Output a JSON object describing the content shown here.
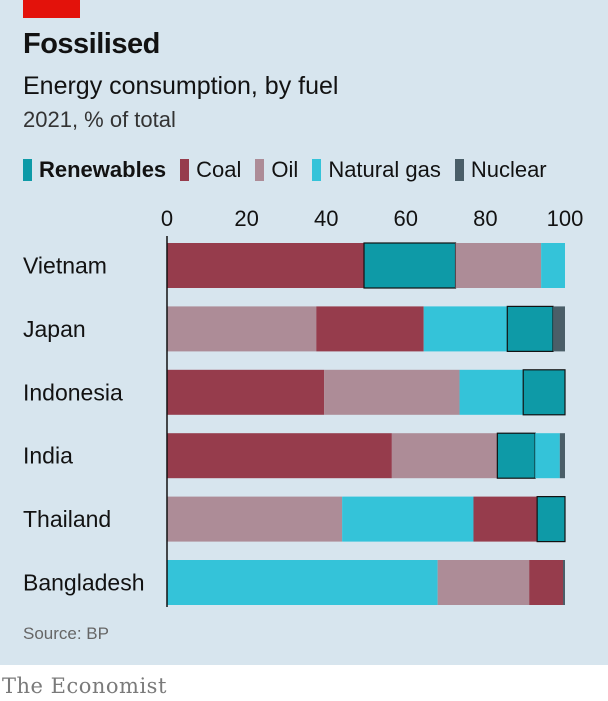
{
  "header": {
    "title": "Fossilised",
    "subtitle": "Energy consumption, by fuel",
    "units": "2021, % of total"
  },
  "source": "Source: BP",
  "brand": "The Economist",
  "colors": {
    "Renewables": "#0e9aa7",
    "Coal": "#963c4c",
    "Oil": "#ad8c97",
    "Natural gas": "#34c3d9",
    "Nuclear": "#4a5e68"
  },
  "chart_data": {
    "type": "bar",
    "orientation": "horizontal",
    "stacked": true,
    "categories": [
      "Vietnam",
      "Japan",
      "Indonesia",
      "India",
      "Thailand",
      "Bangladesh"
    ],
    "legend_order": [
      "Renewables",
      "Coal",
      "Oil",
      "Natural gas",
      "Nuclear"
    ],
    "xlim": [
      0,
      100
    ],
    "xticks": [
      0,
      20,
      40,
      60,
      80,
      100
    ],
    "grid": false,
    "legend_position": "top-left",
    "rows": [
      {
        "category": "Vietnam",
        "segments": [
          {
            "fuel": "Coal",
            "value": 49.5
          },
          {
            "fuel": "Renewables",
            "value": 23
          },
          {
            "fuel": "Oil",
            "value": 21.5
          },
          {
            "fuel": "Natural gas",
            "value": 6
          }
        ]
      },
      {
        "category": "Japan",
        "segments": [
          {
            "fuel": "Oil",
            "value": 37.5
          },
          {
            "fuel": "Coal",
            "value": 27
          },
          {
            "fuel": "Natural gas",
            "value": 21
          },
          {
            "fuel": "Renewables",
            "value": 11.5
          },
          {
            "fuel": "Nuclear",
            "value": 3
          }
        ]
      },
      {
        "category": "Indonesia",
        "segments": [
          {
            "fuel": "Coal",
            "value": 39.5
          },
          {
            "fuel": "Oil",
            "value": 34
          },
          {
            "fuel": "Natural gas",
            "value": 16
          },
          {
            "fuel": "Renewables",
            "value": 10.5
          }
        ]
      },
      {
        "category": "India",
        "segments": [
          {
            "fuel": "Coal",
            "value": 56.5
          },
          {
            "fuel": "Oil",
            "value": 26.5
          },
          {
            "fuel": "Renewables",
            "value": 9.5
          },
          {
            "fuel": "Natural gas",
            "value": 6.2
          },
          {
            "fuel": "Nuclear",
            "value": 1.3
          }
        ]
      },
      {
        "category": "Thailand",
        "segments": [
          {
            "fuel": "Oil",
            "value": 44
          },
          {
            "fuel": "Natural gas",
            "value": 33
          },
          {
            "fuel": "Coal",
            "value": 16
          },
          {
            "fuel": "Renewables",
            "value": 7
          }
        ]
      },
      {
        "category": "Bangladesh",
        "segments": [
          {
            "fuel": "Natural gas",
            "value": 68
          },
          {
            "fuel": "Oil",
            "value": 23
          },
          {
            "fuel": "Coal",
            "value": 8.5
          },
          {
            "fuel": "Nuclear",
            "value": 0.5
          }
        ]
      }
    ]
  }
}
